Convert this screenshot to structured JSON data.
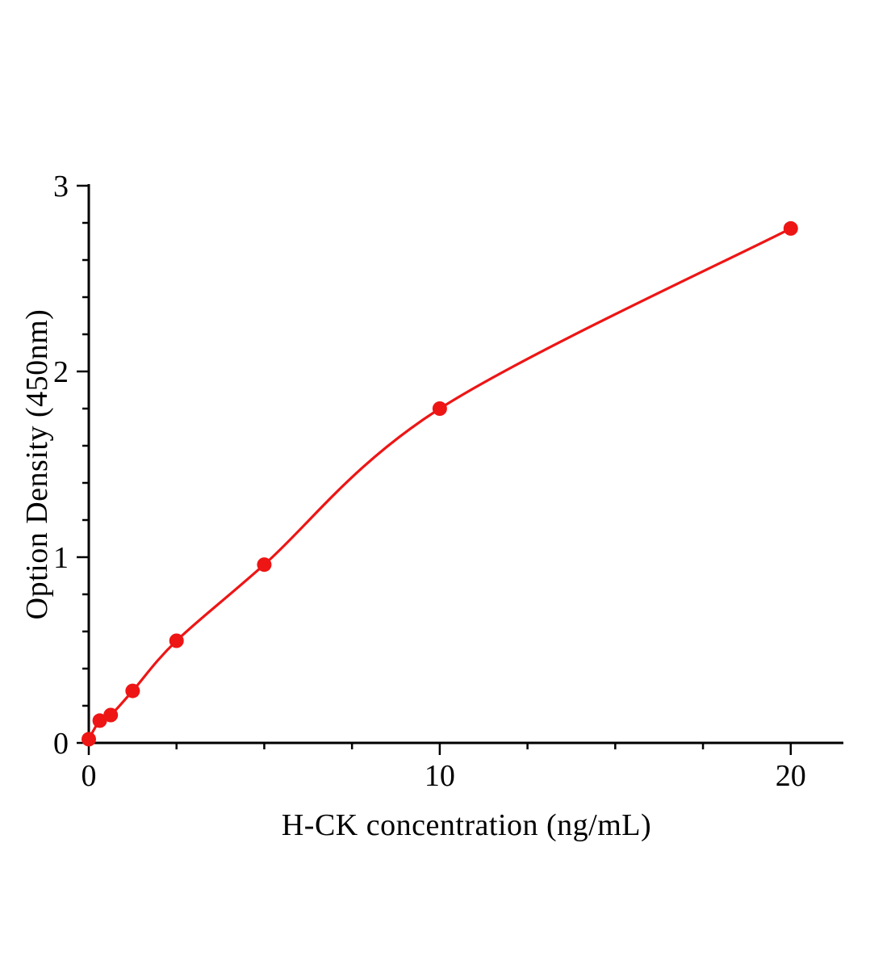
{
  "figure": {
    "xlabel": "H-CK concentration (ng/mL)",
    "ylabel": "Option Density (450nm)"
  },
  "chart_data": {
    "type": "scatter",
    "title": "",
    "xlabel": "H-CK concentration (ng/mL)",
    "ylabel": "Option Density (450nm)",
    "x": [
      0,
      0.3125,
      0.625,
      1.25,
      2.5,
      5,
      10,
      20
    ],
    "y": [
      0.02,
      0.12,
      0.15,
      0.28,
      0.55,
      0.96,
      1.8,
      2.77
    ],
    "fit_line": "smooth saturation curve through all points",
    "xlim": [
      0,
      21.5
    ],
    "ylim": [
      0,
      3
    ],
    "xticks": [
      0,
      10,
      20
    ],
    "xtick_labels": [
      "0",
      "10",
      "20"
    ],
    "yticks": [
      0,
      1,
      2,
      3
    ],
    "ytick_labels": [
      "0",
      "1",
      "2",
      "3"
    ],
    "x_minor_step": 2.5,
    "y_minor_step": 0.2,
    "grid": false,
    "legend": null,
    "line_color": "#ee1515",
    "marker_color": "#ee1515",
    "marker_radius_px": 9,
    "axis_color": "#000000"
  }
}
